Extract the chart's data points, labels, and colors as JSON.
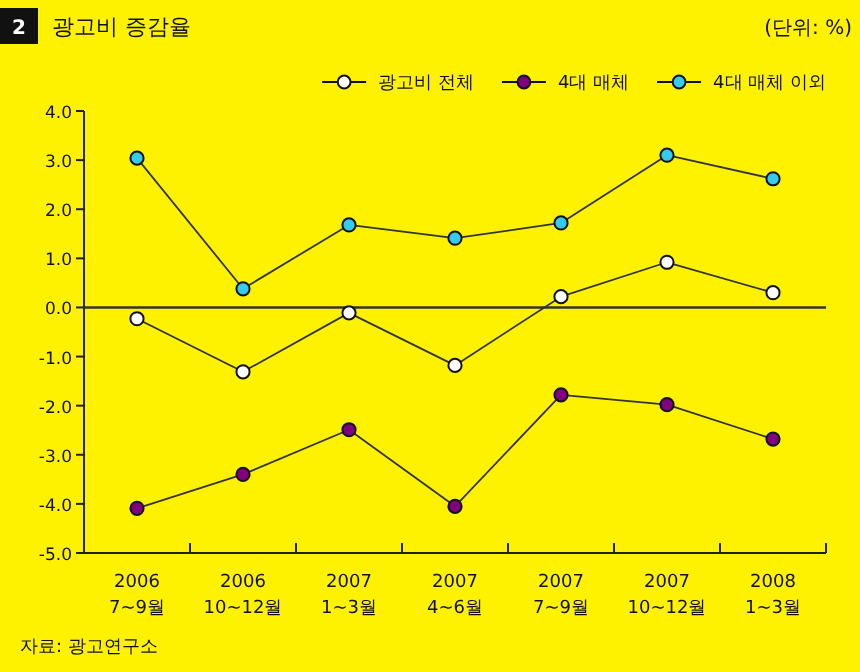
{
  "chart_data": {
    "type": "line",
    "title": "광고비 증감율",
    "categories": [
      "2006\n7~9월",
      "2006\n10~12월",
      "2007\n1~3월",
      "2007\n4~6월",
      "2007\n7~9월",
      "2007\n10~12월",
      "2008\n1~3월"
    ],
    "series": [
      {
        "name": "광고비 전체",
        "color": "#ffffff",
        "values": [
          -0.23,
          -1.31,
          -0.11,
          -1.18,
          0.22,
          0.92,
          0.3
        ]
      },
      {
        "name": "4대 매체",
        "color": "#800080",
        "values": [
          -4.09,
          -3.4,
          -2.49,
          -4.05,
          -1.78,
          -1.98,
          -2.68
        ]
      },
      {
        "name": "4대 매체 이외",
        "color": "#33ccee",
        "values": [
          3.04,
          0.38,
          1.68,
          1.41,
          1.72,
          3.1,
          2.62
        ]
      }
    ],
    "ylim": [
      -5,
      4
    ],
    "yticks": [
      {
        "value": -5,
        "label": "-5.0"
      },
      {
        "value": -4,
        "label": "-4.0"
      },
      {
        "value": -3,
        "label": "-3.0"
      },
      {
        "value": -2,
        "label": "-2.0"
      },
      {
        "value": -1,
        "label": "-1.0"
      },
      {
        "value": 0,
        "label": "0.0"
      },
      {
        "value": 1,
        "label": "1.0"
      },
      {
        "value": 2,
        "label": "2.0"
      },
      {
        "value": 3,
        "label": "3.0"
      },
      {
        "value": 4,
        "label": "4.0"
      }
    ],
    "ref_lines": [
      {
        "axis": "y",
        "value": 0,
        "color": "#333333"
      }
    ],
    "marker": "circle",
    "line_style": "solid",
    "legend": "top right",
    "annotations": [
      "2",
      "(단위: %)",
      "자료: 광고연구소"
    ]
  }
}
